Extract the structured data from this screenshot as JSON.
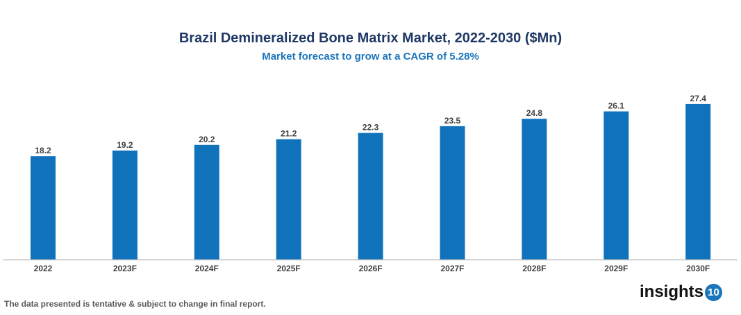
{
  "chart_data": {
    "type": "bar",
    "title": "Brazil Demineralized Bone Matrix Market, 2022-2030 ($Mn)",
    "subtitle": "Market forecast to grow at a CAGR of 5.28%",
    "categories": [
      "2022",
      "2023F",
      "2024F",
      "2025F",
      "2026F",
      "2027F",
      "2028F",
      "2029F",
      "2030F"
    ],
    "values": [
      18.2,
      19.2,
      20.2,
      21.2,
      22.3,
      23.5,
      24.8,
      26.1,
      27.4
    ],
    "xlabel": "",
    "ylabel": "",
    "ylim": [
      0,
      28
    ],
    "grid": false,
    "data_labels": true,
    "bar_color": "#1172bc"
  },
  "footnote": "The data presented is tentative & subject to change in final report.",
  "logo": {
    "text": "insights",
    "badge": "10"
  }
}
